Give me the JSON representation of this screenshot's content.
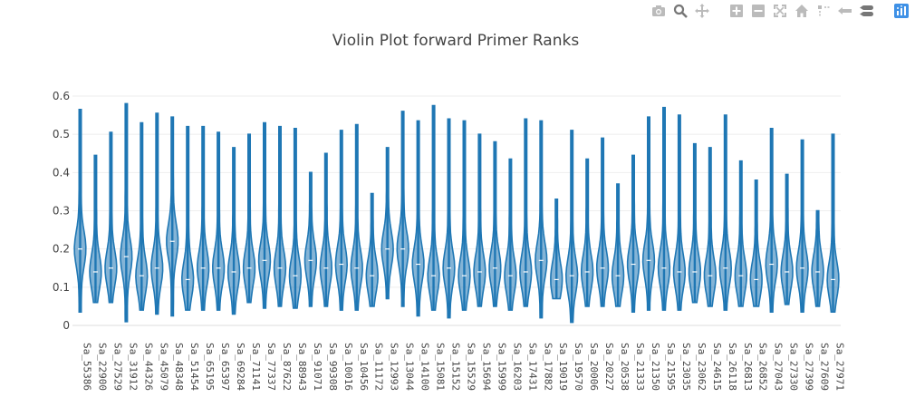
{
  "modebar": {
    "icons": [
      "camera-icon",
      "zoom-icon",
      "pan-icon",
      "zoom-in-icon",
      "zoom-out-icon",
      "autoscale-icon",
      "reset-axes-icon",
      "spike-lines-icon",
      "hover-closest-icon",
      "hover-compare-icon",
      "plotly-logo-icon"
    ],
    "icon_color": "#bbbbbb",
    "active_color": "#777777",
    "logo_color": "#3f91e6"
  },
  "colors": {
    "violin": "#1f77b4",
    "grid": "#eeeeee",
    "zeroline": "#dddddd"
  },
  "chart_data": {
    "type": "violin",
    "title": "Violin Plot forward Primer Ranks",
    "xlabel": "",
    "ylabel": "",
    "ylim": [
      0,
      0.6
    ],
    "yticks": [
      "0",
      "0.1",
      "0.2",
      "0.3",
      "0.4",
      "0.5",
      "0.6"
    ],
    "grid": true,
    "categories": [
      "Sa_55386",
      "Sa_22900",
      "Sa_27529",
      "Sa_31912",
      "Sa_44326",
      "Sa_45079",
      "Sa_48348",
      "Sa_51454",
      "Sa_65195",
      "Sa_65397",
      "Sa_69284",
      "Sa_71141",
      "Sa_77337",
      "Sa_87622",
      "Sa_88943",
      "Sa_91071",
      "Sa_99308",
      "Sa_10016",
      "Sa_10456",
      "Sa_11172",
      "Sa_12993",
      "Sa_13044",
      "Sa_14100",
      "Sa_15081",
      "Sa_15152",
      "Sa_15529",
      "Sa_15694",
      "Sa_15999",
      "Sa_16203",
      "Sa_17431",
      "Sa_17882",
      "Sa_19019",
      "Sa_19570",
      "Sa_20006",
      "Sa_20227",
      "Sa_20538",
      "Sa_21333",
      "Sa_21350",
      "Sa_21595",
      "Sa_23035",
      "Sa_23062",
      "Sa_24615",
      "Sa_26118",
      "Sa_26813",
      "Sa_26852",
      "Sa_27043",
      "Sa_27330",
      "Sa_27399",
      "Sa_27609",
      "Sa_27971"
    ],
    "series": [
      {
        "min": 0.035,
        "max": 0.565,
        "median": 0.2
      },
      {
        "min": 0.06,
        "max": 0.445,
        "median": 0.14
      },
      {
        "min": 0.06,
        "max": 0.505,
        "median": 0.15
      },
      {
        "min": 0.01,
        "max": 0.58,
        "median": 0.18
      },
      {
        "min": 0.04,
        "max": 0.53,
        "median": 0.13
      },
      {
        "min": 0.03,
        "max": 0.555,
        "median": 0.15
      },
      {
        "min": 0.025,
        "max": 0.545,
        "median": 0.22
      },
      {
        "min": 0.04,
        "max": 0.52,
        "median": 0.12
      },
      {
        "min": 0.04,
        "max": 0.52,
        "median": 0.15
      },
      {
        "min": 0.04,
        "max": 0.505,
        "median": 0.15
      },
      {
        "min": 0.03,
        "max": 0.465,
        "median": 0.14
      },
      {
        "min": 0.06,
        "max": 0.5,
        "median": 0.15
      },
      {
        "min": 0.045,
        "max": 0.53,
        "median": 0.17
      },
      {
        "min": 0.05,
        "max": 0.52,
        "median": 0.15
      },
      {
        "min": 0.045,
        "max": 0.515,
        "median": 0.13
      },
      {
        "min": 0.05,
        "max": 0.4,
        "median": 0.17
      },
      {
        "min": 0.05,
        "max": 0.45,
        "median": 0.15
      },
      {
        "min": 0.04,
        "max": 0.51,
        "median": 0.16
      },
      {
        "min": 0.04,
        "max": 0.525,
        "median": 0.15
      },
      {
        "min": 0.05,
        "max": 0.345,
        "median": 0.13
      },
      {
        "min": 0.07,
        "max": 0.465,
        "median": 0.2
      },
      {
        "min": 0.05,
        "max": 0.56,
        "median": 0.2
      },
      {
        "min": 0.025,
        "max": 0.535,
        "median": 0.16
      },
      {
        "min": 0.04,
        "max": 0.575,
        "median": 0.13
      },
      {
        "min": 0.02,
        "max": 0.54,
        "median": 0.15
      },
      {
        "min": 0.04,
        "max": 0.535,
        "median": 0.13
      },
      {
        "min": 0.05,
        "max": 0.5,
        "median": 0.14
      },
      {
        "min": 0.05,
        "max": 0.48,
        "median": 0.15
      },
      {
        "min": 0.04,
        "max": 0.435,
        "median": 0.13
      },
      {
        "min": 0.05,
        "max": 0.54,
        "median": 0.14
      },
      {
        "min": 0.02,
        "max": 0.535,
        "median": 0.17
      },
      {
        "min": 0.07,
        "max": 0.33,
        "median": 0.12
      },
      {
        "min": 0.008,
        "max": 0.51,
        "median": 0.13
      },
      {
        "min": 0.05,
        "max": 0.435,
        "median": 0.14
      },
      {
        "min": 0.05,
        "max": 0.49,
        "median": 0.15
      },
      {
        "min": 0.05,
        "max": 0.37,
        "median": 0.13
      },
      {
        "min": 0.035,
        "max": 0.445,
        "median": 0.16
      },
      {
        "min": 0.04,
        "max": 0.545,
        "median": 0.17
      },
      {
        "min": 0.04,
        "max": 0.57,
        "median": 0.15
      },
      {
        "min": 0.04,
        "max": 0.55,
        "median": 0.14
      },
      {
        "min": 0.06,
        "max": 0.475,
        "median": 0.14
      },
      {
        "min": 0.05,
        "max": 0.465,
        "median": 0.13
      },
      {
        "min": 0.04,
        "max": 0.55,
        "median": 0.15
      },
      {
        "min": 0.05,
        "max": 0.43,
        "median": 0.13
      },
      {
        "min": 0.05,
        "max": 0.38,
        "median": 0.12
      },
      {
        "min": 0.035,
        "max": 0.515,
        "median": 0.16
      },
      {
        "min": 0.055,
        "max": 0.395,
        "median": 0.14
      },
      {
        "min": 0.035,
        "max": 0.485,
        "median": 0.15
      },
      {
        "min": 0.05,
        "max": 0.3,
        "median": 0.14
      },
      {
        "min": 0.035,
        "max": 0.5,
        "median": 0.12
      }
    ]
  }
}
